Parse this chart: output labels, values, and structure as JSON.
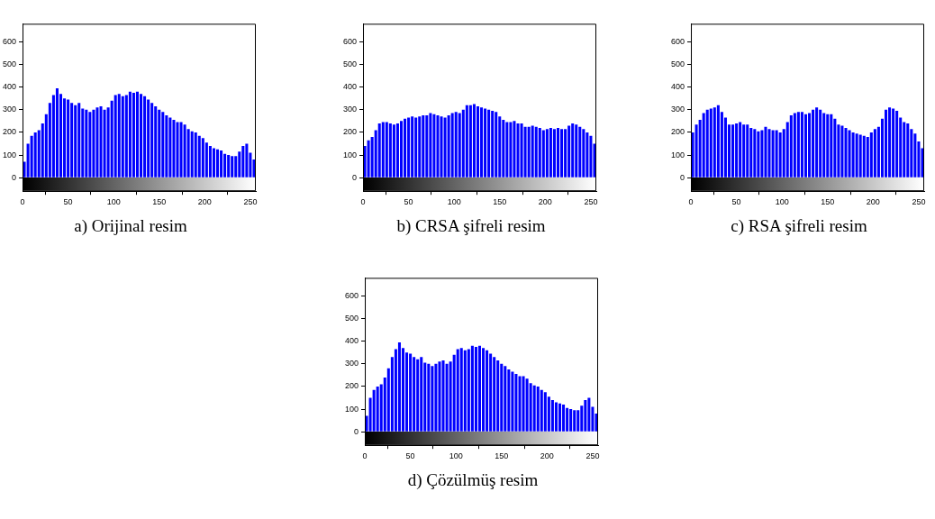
{
  "chart_data": [
    {
      "type": "histogram",
      "title": "a) Orijinal resim",
      "bins": [
        0,
        4,
        8,
        12,
        16,
        20,
        24,
        28,
        32,
        36,
        40,
        44,
        48,
        52,
        56,
        60,
        64,
        68,
        72,
        76,
        80,
        84,
        88,
        92,
        96,
        100,
        104,
        108,
        112,
        116,
        120,
        124,
        128,
        132,
        136,
        140,
        144,
        148,
        152,
        156,
        160,
        164,
        168,
        172,
        176,
        180,
        184,
        188,
        192,
        196,
        200,
        204,
        208,
        212,
        216,
        220,
        224,
        228,
        232,
        236,
        240,
        244,
        248,
        252,
        256
      ],
      "values": [
        70,
        150,
        185,
        200,
        210,
        240,
        280,
        330,
        365,
        395,
        370,
        350,
        345,
        330,
        320,
        330,
        305,
        300,
        290,
        300,
        310,
        315,
        300,
        310,
        340,
        365,
        370,
        360,
        365,
        380,
        375,
        380,
        370,
        360,
        345,
        330,
        315,
        300,
        290,
        275,
        265,
        255,
        245,
        245,
        235,
        215,
        205,
        200,
        185,
        175,
        155,
        140,
        130,
        125,
        120,
        105,
        100,
        95,
        95,
        115,
        140,
        150,
        110,
        80
      ],
      "color": "#0000ff",
      "xlim": [
        0,
        256
      ],
      "ylim": [
        -60,
        680
      ],
      "xticks": [
        0,
        50,
        100,
        150,
        200,
        250
      ],
      "yticks": [
        0,
        100,
        200,
        300,
        400,
        500,
        600
      ],
      "grid": false
    },
    {
      "type": "histogram",
      "title": "b) CRSA şifreli resim",
      "bins": [
        0,
        4,
        8,
        12,
        16,
        20,
        24,
        28,
        32,
        36,
        40,
        44,
        48,
        52,
        56,
        60,
        64,
        68,
        72,
        76,
        80,
        84,
        88,
        92,
        96,
        100,
        104,
        108,
        112,
        116,
        120,
        124,
        128,
        132,
        136,
        140,
        144,
        148,
        152,
        156,
        160,
        164,
        168,
        172,
        176,
        180,
        184,
        188,
        192,
        196,
        200,
        204,
        208,
        212,
        216,
        220,
        224,
        228,
        232,
        236,
        240,
        244,
        248,
        252,
        256
      ],
      "values": [
        140,
        165,
        180,
        210,
        240,
        245,
        245,
        240,
        235,
        240,
        250,
        260,
        265,
        270,
        265,
        270,
        275,
        275,
        285,
        280,
        275,
        270,
        265,
        275,
        285,
        290,
        285,
        300,
        320,
        320,
        325,
        315,
        310,
        305,
        300,
        295,
        290,
        270,
        255,
        245,
        245,
        250,
        240,
        240,
        225,
        225,
        230,
        225,
        220,
        210,
        215,
        220,
        215,
        220,
        215,
        215,
        230,
        240,
        235,
        225,
        215,
        200,
        185,
        150
      ],
      "color": "#0000ff",
      "xlim": [
        0,
        256
      ],
      "ylim": [
        -60,
        680
      ],
      "xticks": [
        0,
        50,
        100,
        150,
        200,
        250
      ],
      "yticks": [
        0,
        100,
        200,
        300,
        400,
        500,
        600
      ],
      "grid": false
    },
    {
      "type": "histogram",
      "title": "c) RSA şifreli resim",
      "bins": [
        0,
        4,
        8,
        12,
        16,
        20,
        24,
        28,
        32,
        36,
        40,
        44,
        48,
        52,
        56,
        60,
        64,
        68,
        72,
        76,
        80,
        84,
        88,
        92,
        96,
        100,
        104,
        108,
        112,
        116,
        120,
        124,
        128,
        132,
        136,
        140,
        144,
        148,
        152,
        156,
        160,
        164,
        168,
        172,
        176,
        180,
        184,
        188,
        192,
        196,
        200,
        204,
        208,
        212,
        216,
        220,
        224,
        228,
        232,
        236,
        240,
        244,
        248,
        252,
        256
      ],
      "values": [
        200,
        235,
        255,
        285,
        300,
        305,
        310,
        320,
        290,
        265,
        235,
        235,
        240,
        245,
        235,
        235,
        220,
        215,
        205,
        210,
        225,
        215,
        210,
        210,
        200,
        215,
        245,
        275,
        285,
        290,
        290,
        280,
        285,
        300,
        310,
        300,
        285,
        280,
        280,
        260,
        235,
        230,
        220,
        210,
        200,
        195,
        190,
        185,
        180,
        200,
        215,
        225,
        260,
        300,
        310,
        305,
        295,
        265,
        245,
        240,
        215,
        195,
        160,
        130
      ],
      "color": "#0000ff",
      "xlim": [
        0,
        256
      ],
      "ylim": [
        -60,
        680
      ],
      "xticks": [
        0,
        50,
        100,
        150,
        200,
        250
      ],
      "yticks": [
        0,
        100,
        200,
        300,
        400,
        500,
        600
      ],
      "grid": false
    },
    {
      "type": "histogram",
      "title": "d) Çözülmüş resim",
      "bins": [
        0,
        4,
        8,
        12,
        16,
        20,
        24,
        28,
        32,
        36,
        40,
        44,
        48,
        52,
        56,
        60,
        64,
        68,
        72,
        76,
        80,
        84,
        88,
        92,
        96,
        100,
        104,
        108,
        112,
        116,
        120,
        124,
        128,
        132,
        136,
        140,
        144,
        148,
        152,
        156,
        160,
        164,
        168,
        172,
        176,
        180,
        184,
        188,
        192,
        196,
        200,
        204,
        208,
        212,
        216,
        220,
        224,
        228,
        232,
        236,
        240,
        244,
        248,
        252,
        256
      ],
      "values": [
        70,
        150,
        185,
        200,
        210,
        240,
        280,
        330,
        365,
        395,
        370,
        350,
        345,
        330,
        320,
        330,
        305,
        300,
        290,
        300,
        310,
        315,
        300,
        310,
        340,
        365,
        370,
        360,
        365,
        380,
        375,
        380,
        370,
        360,
        345,
        330,
        315,
        300,
        290,
        275,
        265,
        255,
        245,
        245,
        235,
        215,
        205,
        200,
        185,
        175,
        155,
        140,
        130,
        125,
        120,
        105,
        100,
        95,
        95,
        115,
        140,
        150,
        110,
        80
      ],
      "color": "#0000ff",
      "xlim": [
        0,
        256
      ],
      "ylim": [
        -60,
        680
      ],
      "xticks": [
        0,
        50,
        100,
        150,
        200,
        250
      ],
      "yticks": [
        0,
        100,
        200,
        300,
        400,
        500,
        600
      ],
      "grid": false
    }
  ]
}
